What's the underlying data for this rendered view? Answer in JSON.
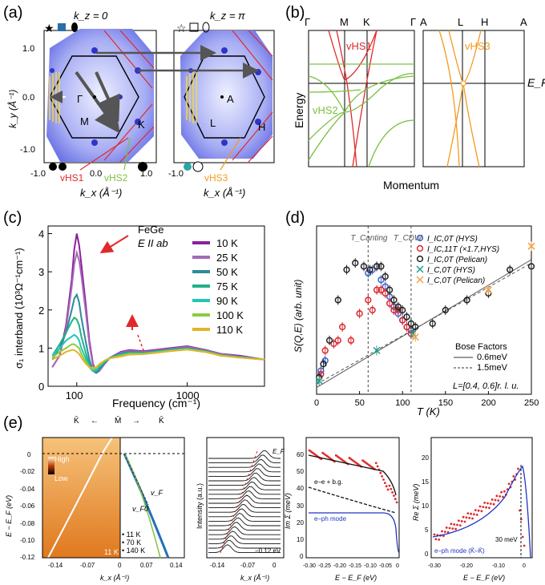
{
  "panel_labels": {
    "a": "(a)",
    "b": "(b)",
    "c": "(c)",
    "d": "(d)",
    "e": "(e)"
  },
  "colors": {
    "red": "#e0292b",
    "green": "#7ac143",
    "orange": "#f39a1e",
    "purple": "#8c1f9e",
    "blue": "#2d35c8",
    "gray": "#555555"
  },
  "panel_a": {
    "left_title": "k_z = 0",
    "right_title": "k_z = π",
    "ylabel": "k_y (Å⁻¹)",
    "xlabel": "k_x (Å⁻¹)",
    "yticks": [
      "1.0",
      "0.0",
      "-1.0"
    ],
    "xticks": [
      "-1.0",
      "0.0",
      "1.0"
    ],
    "points_left": [
      "Γ",
      "M",
      "K"
    ],
    "points_right": [
      "A",
      "L",
      "H"
    ],
    "annotations": [
      "vHS1",
      "vHS2",
      "vHS3"
    ]
  },
  "panel_b": {
    "left_kpoints": [
      "Γ",
      "M",
      "K",
      "Γ"
    ],
    "right_kpoints": [
      "A",
      "L",
      "H",
      "A"
    ],
    "ylabel": "Energy",
    "xlabel": "Momentum",
    "fermi_label": "E_F",
    "annotations": [
      "vHS1",
      "vHS2",
      "vHS3"
    ]
  },
  "chart_data": [
    {
      "id": "c",
      "type": "line",
      "title": "FeGe",
      "subtitle": "E II ab",
      "xlabel": "Frequency (cm⁻¹)",
      "ylabel": "σ₁ interband (10³Ω⁻¹cm⁻¹)",
      "xscale": "log",
      "xlim": [
        55,
        5000
      ],
      "ylim": [
        0,
        4.2
      ],
      "yticks": [
        0,
        1,
        2,
        3,
        4
      ],
      "xticks": [
        100,
        1000
      ],
      "xtick_labels": [
        "100",
        "1000"
      ],
      "series": [
        {
          "name": "10 K",
          "color": "#8c1f9e",
          "x": [
            60,
            70,
            80,
            90,
            95,
            100,
            105,
            110,
            120,
            130,
            140,
            150,
            160,
            180,
            200,
            250,
            300,
            400,
            500,
            700,
            1000,
            1500,
            2000,
            3000,
            5000
          ],
          "y": [
            0.5,
            0.8,
            1.6,
            2.8,
            3.6,
            4.0,
            3.7,
            3.2,
            2.2,
            1.2,
            0.6,
            0.35,
            0.4,
            0.6,
            0.75,
            0.9,
            0.95,
            0.92,
            0.95,
            1.0,
            1.05,
            0.95,
            0.85,
            0.8,
            0.7
          ]
        },
        {
          "name": "25 K",
          "color": "#a46bb8",
          "x": [
            60,
            70,
            80,
            90,
            95,
            100,
            105,
            110,
            120,
            130,
            140,
            150,
            160,
            180,
            200,
            250,
            300,
            400,
            500,
            700,
            1000,
            1500,
            2000,
            3000,
            5000
          ],
          "y": [
            0.5,
            0.8,
            1.5,
            2.6,
            3.2,
            3.5,
            3.3,
            2.9,
            2.0,
            1.1,
            0.55,
            0.35,
            0.4,
            0.6,
            0.75,
            0.88,
            0.93,
            0.9,
            0.93,
            0.98,
            1.03,
            0.94,
            0.84,
            0.78,
            0.7
          ]
        },
        {
          "name": "50 K",
          "color": "#2b8b9a",
          "x": [
            60,
            70,
            80,
            90,
            95,
            100,
            105,
            110,
            120,
            130,
            140,
            150,
            160,
            180,
            200,
            250,
            300,
            400,
            500,
            700,
            1000,
            1500,
            2000,
            3000,
            5000
          ],
          "y": [
            0.7,
            1.0,
            1.4,
            2.0,
            2.3,
            2.4,
            2.2,
            1.8,
            1.2,
            0.7,
            0.4,
            0.35,
            0.45,
            0.62,
            0.75,
            0.85,
            0.9,
            0.88,
            0.91,
            0.96,
            1.0,
            0.92,
            0.82,
            0.77,
            0.7
          ]
        },
        {
          "name": "75 K",
          "color": "#23b08a",
          "x": [
            60,
            70,
            80,
            90,
            95,
            100,
            105,
            110,
            120,
            130,
            140,
            150,
            160,
            180,
            200,
            250,
            300,
            400,
            500,
            700,
            1000,
            1500,
            2000,
            3000,
            5000
          ],
          "y": [
            0.8,
            1.1,
            1.4,
            1.7,
            1.8,
            1.75,
            1.6,
            1.3,
            0.9,
            0.55,
            0.4,
            0.4,
            0.5,
            0.65,
            0.75,
            0.83,
            0.88,
            0.87,
            0.9,
            0.95,
            0.99,
            0.91,
            0.82,
            0.76,
            0.7
          ]
        },
        {
          "name": "90 K",
          "color": "#1ec9b2",
          "x": [
            60,
            70,
            80,
            90,
            95,
            100,
            105,
            110,
            120,
            130,
            140,
            150,
            160,
            180,
            200,
            250,
            300,
            400,
            500,
            700,
            1000,
            1500,
            2000,
            3000,
            5000
          ],
          "y": [
            0.8,
            1.0,
            1.2,
            1.3,
            1.35,
            1.3,
            1.2,
            1.0,
            0.75,
            0.5,
            0.4,
            0.42,
            0.52,
            0.66,
            0.74,
            0.82,
            0.86,
            0.86,
            0.89,
            0.94,
            0.98,
            0.9,
            0.81,
            0.76,
            0.7
          ]
        },
        {
          "name": "100 K",
          "color": "#8ccc3e",
          "x": [
            60,
            70,
            80,
            90,
            95,
            100,
            105,
            110,
            120,
            130,
            140,
            150,
            160,
            180,
            200,
            250,
            300,
            400,
            500,
            700,
            1000,
            1500,
            2000,
            3000,
            5000
          ],
          "y": [
            0.75,
            0.9,
            1.0,
            1.1,
            1.1,
            1.05,
            1.0,
            0.85,
            0.65,
            0.5,
            0.45,
            0.48,
            0.56,
            0.68,
            0.74,
            0.8,
            0.85,
            0.85,
            0.88,
            0.93,
            0.97,
            0.9,
            0.81,
            0.75,
            0.7
          ]
        },
        {
          "name": "110 K",
          "color": "#e3b42a",
          "x": [
            60,
            70,
            80,
            90,
            95,
            100,
            105,
            110,
            120,
            130,
            140,
            150,
            160,
            180,
            200,
            250,
            300,
            400,
            500,
            700,
            1000,
            1500,
            2000,
            3000,
            5000
          ],
          "y": [
            0.7,
            0.8,
            0.9,
            0.95,
            0.95,
            0.9,
            0.85,
            0.75,
            0.6,
            0.5,
            0.48,
            0.5,
            0.58,
            0.68,
            0.73,
            0.78,
            0.83,
            0.84,
            0.87,
            0.92,
            0.96,
            0.89,
            0.8,
            0.75,
            0.7
          ]
        }
      ]
    },
    {
      "id": "d",
      "type": "scatter",
      "xlabel": "T (K)",
      "ylabel": "S(Q,E) (arb. unit)",
      "xlim": [
        0,
        250
      ],
      "xticks": [
        0,
        50,
        100,
        150,
        200,
        250
      ],
      "ylim": [
        0,
        50
      ],
      "vlines": [
        {
          "x": 60,
          "label": "T_Canting"
        },
        {
          "x": 110,
          "label": "T_CDW"
        }
      ],
      "series": [
        {
          "name": "I_IC,0T (HYS)",
          "color": "#3b5fc9",
          "x": [
            5,
            10,
            60,
            65,
            70,
            75,
            80,
            85,
            90,
            95,
            100,
            105,
            110
          ],
          "y": [
            7,
            10,
            36,
            37,
            38,
            34,
            32,
            29,
            26,
            24,
            22,
            20,
            19
          ]
        },
        {
          "name": "I_IC,11T (×1.7,HYS)",
          "color": "#d9282f",
          "x": [
            5,
            10,
            20,
            25,
            30,
            40,
            50,
            60,
            65,
            70,
            75,
            80,
            85,
            90,
            95,
            100,
            105,
            110
          ],
          "y": [
            6,
            13,
            15,
            16,
            20,
            16,
            24,
            28,
            25,
            31,
            31,
            30,
            27,
            25,
            25,
            22,
            20,
            18
          ]
        },
        {
          "name": "I_IC,0T (Pelican)",
          "color": "#222222",
          "x": [
            3,
            8,
            15,
            25,
            35,
            45,
            55,
            62,
            70,
            75,
            80,
            85,
            90,
            95,
            100,
            105,
            110,
            115,
            135,
            150,
            175,
            200,
            225,
            250
          ],
          "y": [
            5,
            9,
            16,
            28,
            37,
            39,
            38,
            37,
            38,
            38,
            35,
            31,
            28,
            26,
            25,
            23,
            21,
            20,
            21,
            25,
            28,
            30,
            37,
            38
          ]
        },
        {
          "name": "I_C,0T (HYS)",
          "color": "#1f9d8b",
          "x": [
            3,
            70,
            112
          ],
          "y": [
            4,
            13,
            18
          ]
        },
        {
          "name": "I_C,0T (Pelican)",
          "color": "#f0a14a",
          "x": [
            115,
            200,
            250
          ],
          "y": [
            17,
            31,
            44
          ]
        }
      ],
      "fit_lines": [
        {
          "name": "0.6meV",
          "style": "solid",
          "x": [
            0,
            250
          ],
          "y": [
            2,
            40
          ]
        },
        {
          "name": "1.5meV",
          "style": "dashed",
          "x": [
            0,
            250
          ],
          "y": [
            3,
            39
          ]
        }
      ],
      "legend_title": "Bose Factors",
      "footnote": "L=[0.4, 0.6]r. l. u."
    }
  ],
  "panel_e": {
    "top_labels": [
      "K̄",
      "M̄",
      "K̄"
    ],
    "arrows": [
      "←",
      "→"
    ],
    "e1": {
      "ylabel": "E − E_F (eV)",
      "xlabel": "k_x (Å⁻¹)",
      "yticks": [
        "0",
        "-0.02",
        "-0.04",
        "-0.06",
        "-0.08",
        "-0.10",
        "-0.12"
      ],
      "xticks": [
        "-0.14",
        "-0.07",
        "0",
        "0.07",
        "0.14"
      ],
      "colorbar_high": "High",
      "colorbar_low": "Low",
      "temp": "11 K",
      "legend": [
        "• 11 K",
        "• 70 K",
        "• 140 K"
      ],
      "vF": "v_F",
      "v0": "v_F0"
    },
    "e2": {
      "ylabel": "Intensity (a.u.)",
      "xlabel": "k_x (Å⁻¹)",
      "xticks": [
        "-0.14",
        "-0.07",
        "0"
      ],
      "top": "E_F",
      "bottom": "−0.12 eV"
    },
    "e3": {
      "ylabel": "Im Σ (meV)",
      "xlabel": "E − E_F (eV)",
      "yticks": [
        "60",
        "50",
        "40",
        "30",
        "20",
        "10",
        "0"
      ],
      "xticks": [
        "-0.30",
        "-0.25",
        "-0.20",
        "-0.15",
        "-0.10",
        "-0.05",
        "0"
      ],
      "labels": [
        "e–e + b.g.",
        "e–ph mode"
      ]
    },
    "e4": {
      "ylabel": "Re Σ (meV)",
      "xlabel": "E − E_F (eV)",
      "yticks": [
        "20",
        "15",
        "10",
        "5",
        "0"
      ],
      "xticks": [
        "-0.30",
        "-0.20",
        "-0.10",
        "0"
      ],
      "labels": [
        "30 meV",
        "e–ph mode (K̄–K̄)"
      ]
    }
  }
}
